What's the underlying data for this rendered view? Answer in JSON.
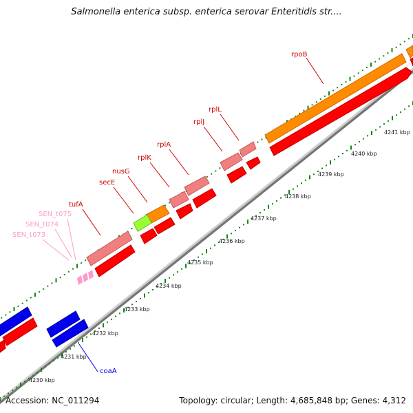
{
  "title": "Salmonella enterica subsp. enterica serovar Enteritidis str....",
  "footer": {
    "accession": "Accession: NC_011294",
    "topology": "Topology: circular; Length: 4,685,848 bp; Genes: 4,312"
  },
  "colors": {
    "forward_strand_gene": "#ff0000",
    "reverse_strand_gene": "#f08080",
    "orange_gene": "#ff8c00",
    "lime_gene": "#99ff33",
    "blue_gene": "#0000ee",
    "trna": "#ff99cc",
    "backbone": "#999999",
    "tick_green": "#118811"
  },
  "kbp_ticks": [
    {
      "label": "4230 kbp"
    },
    {
      "label": "4231 kbp"
    },
    {
      "label": "4232 kbp"
    },
    {
      "label": "4233 kbp"
    },
    {
      "label": "4234 kbp"
    },
    {
      "label": "4235 kbp"
    },
    {
      "label": "4236 kbp"
    },
    {
      "label": "4237 kbp"
    },
    {
      "label": "4238 kbp"
    },
    {
      "label": "4239 kbp"
    },
    {
      "label": "4240 kbp"
    },
    {
      "label": "4241 kbp"
    }
  ],
  "gene_labels": [
    {
      "name": "rpoB",
      "color": "#cc0000"
    },
    {
      "name": "rplL",
      "color": "#cc0000"
    },
    {
      "name": "rplJ",
      "color": "#cc0000"
    },
    {
      "name": "rplA",
      "color": "#cc0000"
    },
    {
      "name": "rplK",
      "color": "#cc0000"
    },
    {
      "name": "nusG",
      "color": "#cc0000"
    },
    {
      "name": "secE",
      "color": "#cc0000"
    },
    {
      "name": "tufA",
      "color": "#cc0000"
    },
    {
      "name": "SEN_t075",
      "color": "#ff99cc"
    },
    {
      "name": "SEN_t074",
      "color": "#ff99cc"
    },
    {
      "name": "SEN_t073",
      "color": "#ff99cc"
    },
    {
      "name": "coaA",
      "color": "#0000ee"
    }
  ]
}
